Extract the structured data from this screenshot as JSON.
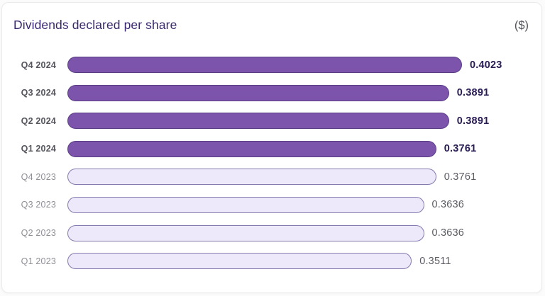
{
  "header": {
    "title": "Dividends declared per share",
    "unit_label": "($)"
  },
  "chart_data": {
    "type": "bar",
    "orientation": "horizontal",
    "title": "Dividends declared per share",
    "unit": "$",
    "xlabel": "",
    "ylabel": "",
    "xlim": [
      0,
      0.4023
    ],
    "grid": false,
    "legend": "none",
    "categories": [
      "Q4 2024",
      "Q3 2024",
      "Q2 2024",
      "Q1 2024",
      "Q4 2023",
      "Q3 2023",
      "Q2 2023",
      "Q1 2023"
    ],
    "values": [
      0.4023,
      0.3891,
      0.3891,
      0.3761,
      0.3761,
      0.3636,
      0.3636,
      0.3511
    ],
    "value_labels": [
      "0.4023",
      "0.3891",
      "0.3891",
      "0.3761",
      "0.3761",
      "0.3636",
      "0.3636",
      "0.3511"
    ],
    "emphasized": [
      true,
      true,
      true,
      true,
      false,
      false,
      false,
      false
    ]
  },
  "colors": {
    "title": "#3a2772",
    "unit_label": "#54555b",
    "bar_solid_fill": "#7d54ac",
    "bar_solid_border": "#5b3d85",
    "bar_light_fill": "#ede9fa",
    "bar_light_border": "#847aae",
    "label_emphasized": "#55565e",
    "label_muted": "#8e8f97",
    "value_emphasized": "#291c54",
    "value_muted": "#5b5c64",
    "card_background": "#ffffff",
    "card_border": "#ebebee"
  }
}
